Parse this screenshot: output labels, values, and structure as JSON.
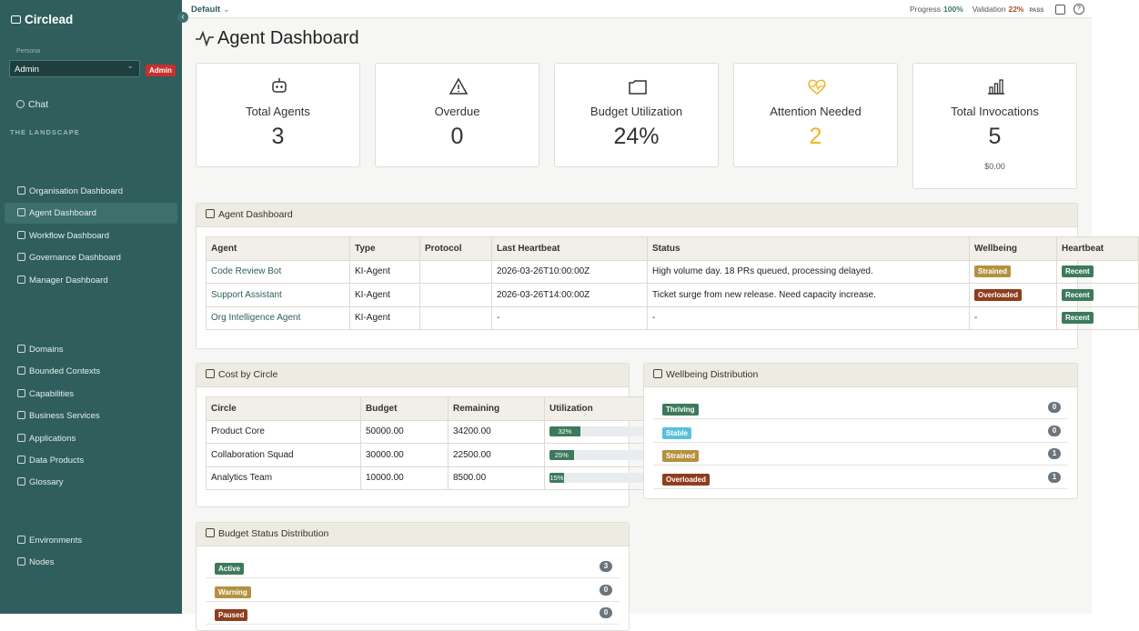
{
  "sidebar": {
    "brand": "Circlead",
    "persona_label": "Persona",
    "persona": "Admin",
    "persona_badge": "Admin",
    "chat": "Chat",
    "section": "THE LANDSCAPE",
    "groups": [
      [
        "Organisation Dashboard",
        "Agent Dashboard",
        "Workflow Dashboard",
        "Governance Dashboard",
        "Manager Dashboard"
      ],
      [
        "Domains",
        "Bounded Contexts",
        "Capabilities",
        "Business Services",
        "Applications",
        "Data Products",
        "Glossary"
      ],
      [
        "Environments",
        "Nodes"
      ]
    ]
  },
  "topbar": {
    "workspace": "Default",
    "progress_label": "Progress",
    "progress_value": "100%",
    "validation_label": "Validation",
    "validation_value": "22%",
    "validation_status": "PASS"
  },
  "page_title": "Agent Dashboard",
  "cards": [
    {
      "label": "Total Agents",
      "value": "3"
    },
    {
      "label": "Overdue",
      "value": "0"
    },
    {
      "label": "Budget Utilization",
      "value": "24%"
    },
    {
      "label": "Attention Needed",
      "value": "2",
      "color": "#f0b429"
    },
    {
      "label": "Total Invocations",
      "value": "5",
      "sub": "$0.00"
    }
  ],
  "agent_table": {
    "title": "Agent Dashboard",
    "headers": [
      "Agent",
      "Type",
      "Protocol",
      "Last Heartbeat",
      "Status",
      "Wellbeing",
      "Heartbeat"
    ],
    "rows": [
      {
        "agent": "Code Review Bot",
        "type": "KI-Agent",
        "last_heartbeat": "2026-03-26T10:00:00Z",
        "status": "High volume day. 18 PRs queued, processing delayed.",
        "wellbeing": {
          "text": "Strained",
          "color": "#b5913f"
        },
        "heartbeat": {
          "text": "Recent",
          "color": "#3d7a5c"
        }
      },
      {
        "agent": "Support Assistant",
        "type": "KI-Agent",
        "last_heartbeat": "2026-03-26T14:00:00Z",
        "status": "Ticket surge from new release. Need capacity increase.",
        "wellbeing": {
          "text": "Overloaded",
          "color": "#8f3d1e"
        },
        "heartbeat": {
          "text": "Recent",
          "color": "#3d7a5c"
        }
      },
      {
        "agent": "Org Intelligence Agent",
        "type": "KI-Agent",
        "last_heartbeat": "-",
        "status": "-",
        "wellbeing": "-",
        "heartbeat": {
          "text": "Recent",
          "color": "#3d7a5c"
        }
      }
    ]
  },
  "cost_table": {
    "title": "Cost by Circle",
    "headers": [
      "Circle",
      "Budget",
      "Remaining",
      "Utilization"
    ],
    "rows": [
      {
        "circle": "Product Core",
        "budget": "50000.00",
        "remaining": "34200.00",
        "utilization": {
          "value": 32,
          "label": "32%"
        }
      },
      {
        "circle": "Collaboration Squad",
        "budget": "30000.00",
        "remaining": "22500.00",
        "utilization": {
          "value": 25,
          "label": "25%"
        }
      },
      {
        "circle": "Analytics Team",
        "budget": "10000.00",
        "remaining": "8500.00",
        "utilization": {
          "value": 15,
          "label": "15%"
        }
      }
    ],
    "bar_color": "#3d7a5c"
  },
  "wellbeing_distribution": {
    "title": "Wellbeing Distribution",
    "items": [
      {
        "label": "Thriving",
        "count": "0",
        "color": "#3d7a5c"
      },
      {
        "label": "Stable",
        "count": "0",
        "color": "#5bc0de"
      },
      {
        "label": "Strained",
        "count": "1",
        "color": "#b5913f"
      },
      {
        "label": "Overloaded",
        "count": "1",
        "color": "#8f3d1e"
      }
    ]
  },
  "budget_distribution": {
    "title": "Budget Status Distribution",
    "items": [
      {
        "label": "Active",
        "count": "3",
        "color": "#3d7a5c"
      },
      {
        "label": "Warning",
        "count": "0",
        "color": "#b5913f"
      },
      {
        "label": "Paused",
        "count": "0",
        "color": "#8f3d1e"
      }
    ]
  }
}
